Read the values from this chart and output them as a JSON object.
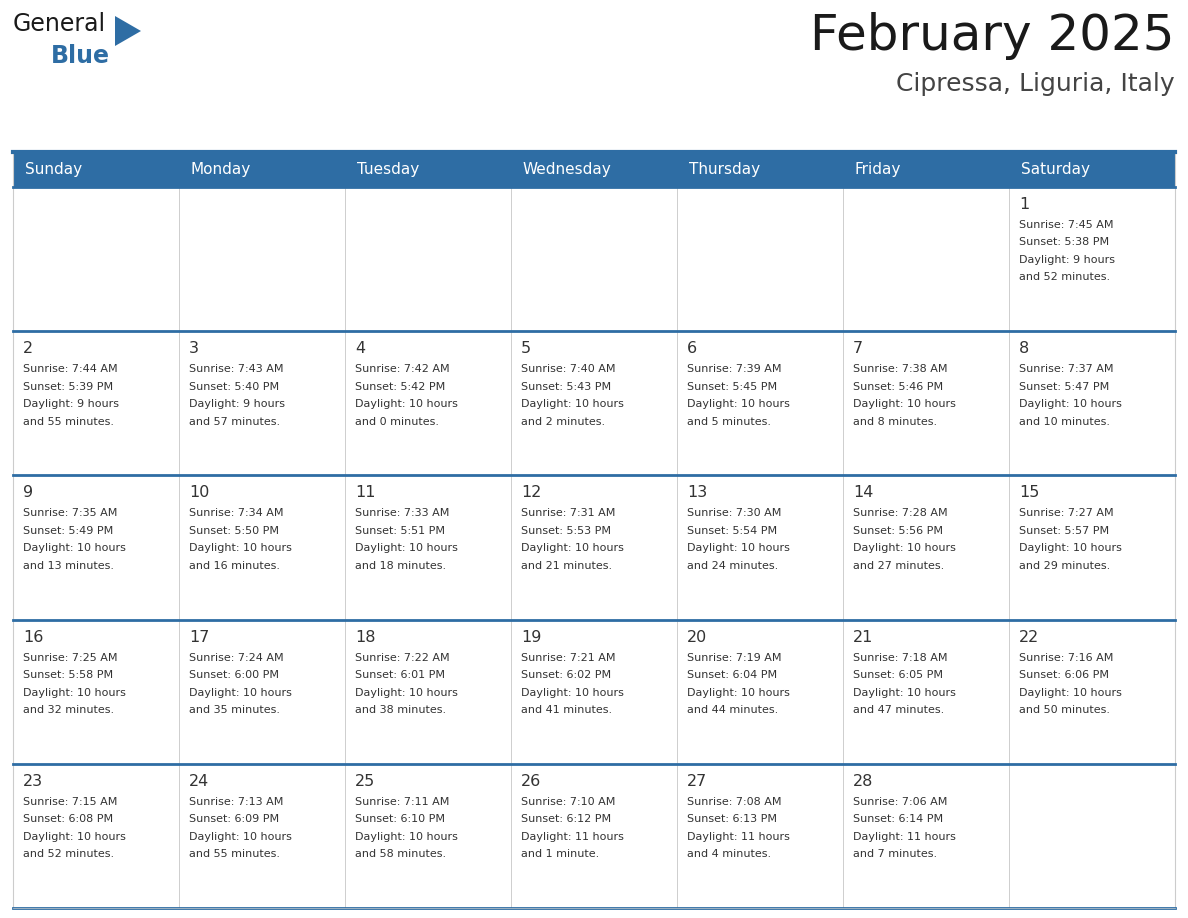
{
  "title": "February 2025",
  "subtitle": "Cipressa, Liguria, Italy",
  "header_bg": "#2E6DA4",
  "header_text_color": "#FFFFFF",
  "cell_bg": "#FFFFFF",
  "cell_bg_alt": "#F0F4F8",
  "row_separator_color": "#2E6DA4",
  "cell_border_color": "#CCCCCC",
  "day_headers": [
    "Sunday",
    "Monday",
    "Tuesday",
    "Wednesday",
    "Thursday",
    "Friday",
    "Saturday"
  ],
  "title_color": "#1a1a1a",
  "subtitle_color": "#444444",
  "day_number_color": "#333333",
  "cell_text_color": "#333333",
  "logo_color_general": "#1a1a1a",
  "logo_color_blue": "#2E6DA4",
  "logo_triangle_color": "#2E6DA4",
  "calendar_data": [
    [
      null,
      null,
      null,
      null,
      null,
      null,
      {
        "day": "1",
        "sunrise": "7:45 AM",
        "sunset": "5:38 PM",
        "daylight_line1": "Daylight: 9 hours",
        "daylight_line2": "and 52 minutes."
      }
    ],
    [
      {
        "day": "2",
        "sunrise": "7:44 AM",
        "sunset": "5:39 PM",
        "daylight_line1": "Daylight: 9 hours",
        "daylight_line2": "and 55 minutes."
      },
      {
        "day": "3",
        "sunrise": "7:43 AM",
        "sunset": "5:40 PM",
        "daylight_line1": "Daylight: 9 hours",
        "daylight_line2": "and 57 minutes."
      },
      {
        "day": "4",
        "sunrise": "7:42 AM",
        "sunset": "5:42 PM",
        "daylight_line1": "Daylight: 10 hours",
        "daylight_line2": "and 0 minutes."
      },
      {
        "day": "5",
        "sunrise": "7:40 AM",
        "sunset": "5:43 PM",
        "daylight_line1": "Daylight: 10 hours",
        "daylight_line2": "and 2 minutes."
      },
      {
        "day": "6",
        "sunrise": "7:39 AM",
        "sunset": "5:45 PM",
        "daylight_line1": "Daylight: 10 hours",
        "daylight_line2": "and 5 minutes."
      },
      {
        "day": "7",
        "sunrise": "7:38 AM",
        "sunset": "5:46 PM",
        "daylight_line1": "Daylight: 10 hours",
        "daylight_line2": "and 8 minutes."
      },
      {
        "day": "8",
        "sunrise": "7:37 AM",
        "sunset": "5:47 PM",
        "daylight_line1": "Daylight: 10 hours",
        "daylight_line2": "and 10 minutes."
      }
    ],
    [
      {
        "day": "9",
        "sunrise": "7:35 AM",
        "sunset": "5:49 PM",
        "daylight_line1": "Daylight: 10 hours",
        "daylight_line2": "and 13 minutes."
      },
      {
        "day": "10",
        "sunrise": "7:34 AM",
        "sunset": "5:50 PM",
        "daylight_line1": "Daylight: 10 hours",
        "daylight_line2": "and 16 minutes."
      },
      {
        "day": "11",
        "sunrise": "7:33 AM",
        "sunset": "5:51 PM",
        "daylight_line1": "Daylight: 10 hours",
        "daylight_line2": "and 18 minutes."
      },
      {
        "day": "12",
        "sunrise": "7:31 AM",
        "sunset": "5:53 PM",
        "daylight_line1": "Daylight: 10 hours",
        "daylight_line2": "and 21 minutes."
      },
      {
        "day": "13",
        "sunrise": "7:30 AM",
        "sunset": "5:54 PM",
        "daylight_line1": "Daylight: 10 hours",
        "daylight_line2": "and 24 minutes."
      },
      {
        "day": "14",
        "sunrise": "7:28 AM",
        "sunset": "5:56 PM",
        "daylight_line1": "Daylight: 10 hours",
        "daylight_line2": "and 27 minutes."
      },
      {
        "day": "15",
        "sunrise": "7:27 AM",
        "sunset": "5:57 PM",
        "daylight_line1": "Daylight: 10 hours",
        "daylight_line2": "and 29 minutes."
      }
    ],
    [
      {
        "day": "16",
        "sunrise": "7:25 AM",
        "sunset": "5:58 PM",
        "daylight_line1": "Daylight: 10 hours",
        "daylight_line2": "and 32 minutes."
      },
      {
        "day": "17",
        "sunrise": "7:24 AM",
        "sunset": "6:00 PM",
        "daylight_line1": "Daylight: 10 hours",
        "daylight_line2": "and 35 minutes."
      },
      {
        "day": "18",
        "sunrise": "7:22 AM",
        "sunset": "6:01 PM",
        "daylight_line1": "Daylight: 10 hours",
        "daylight_line2": "and 38 minutes."
      },
      {
        "day": "19",
        "sunrise": "7:21 AM",
        "sunset": "6:02 PM",
        "daylight_line1": "Daylight: 10 hours",
        "daylight_line2": "and 41 minutes."
      },
      {
        "day": "20",
        "sunrise": "7:19 AM",
        "sunset": "6:04 PM",
        "daylight_line1": "Daylight: 10 hours",
        "daylight_line2": "and 44 minutes."
      },
      {
        "day": "21",
        "sunrise": "7:18 AM",
        "sunset": "6:05 PM",
        "daylight_line1": "Daylight: 10 hours",
        "daylight_line2": "and 47 minutes."
      },
      {
        "day": "22",
        "sunrise": "7:16 AM",
        "sunset": "6:06 PM",
        "daylight_line1": "Daylight: 10 hours",
        "daylight_line2": "and 50 minutes."
      }
    ],
    [
      {
        "day": "23",
        "sunrise": "7:15 AM",
        "sunset": "6:08 PM",
        "daylight_line1": "Daylight: 10 hours",
        "daylight_line2": "and 52 minutes."
      },
      {
        "day": "24",
        "sunrise": "7:13 AM",
        "sunset": "6:09 PM",
        "daylight_line1": "Daylight: 10 hours",
        "daylight_line2": "and 55 minutes."
      },
      {
        "day": "25",
        "sunrise": "7:11 AM",
        "sunset": "6:10 PM",
        "daylight_line1": "Daylight: 10 hours",
        "daylight_line2": "and 58 minutes."
      },
      {
        "day": "26",
        "sunrise": "7:10 AM",
        "sunset": "6:12 PM",
        "daylight_line1": "Daylight: 11 hours",
        "daylight_line2": "and 1 minute."
      },
      {
        "day": "27",
        "sunrise": "7:08 AM",
        "sunset": "6:13 PM",
        "daylight_line1": "Daylight: 11 hours",
        "daylight_line2": "and 4 minutes."
      },
      {
        "day": "28",
        "sunrise": "7:06 AM",
        "sunset": "6:14 PM",
        "daylight_line1": "Daylight: 11 hours",
        "daylight_line2": "and 7 minutes."
      },
      null
    ]
  ]
}
